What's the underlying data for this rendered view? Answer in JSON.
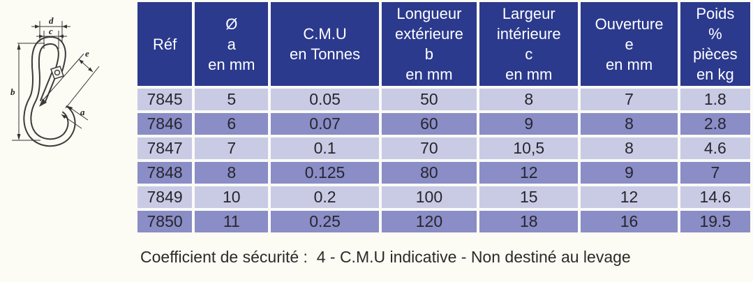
{
  "page": {
    "background": "#fcfbf4"
  },
  "diagram": {
    "description": "technical line drawing of a spring snap hook (mousqueton)",
    "labels": {
      "d": "d",
      "c": "c",
      "b": "b",
      "e": "e",
      "a": "a"
    }
  },
  "table": {
    "colors": {
      "header_bg": "#2b3a8d",
      "header_text": "#ffffff",
      "row_light": "#c9cbe4",
      "row_dark": "#8a8dc6",
      "cell_text": "#26262e",
      "gap": "#fafaf7"
    },
    "columns": [
      {
        "label": "Réf"
      },
      {
        "label": "Ø\na\nen mm"
      },
      {
        "label": "C.M.U\nen Tonnes"
      },
      {
        "label": "Longueur\nextérieure\nb\nen mm"
      },
      {
        "label": "Largeur\nintérieure\nc\nen mm"
      },
      {
        "label": "Ouverture\ne\nen mm"
      },
      {
        "label": "Poids\n%\npièces\nen kg"
      }
    ],
    "rows": [
      [
        "7845",
        "5",
        "0.05",
        "50",
        "8",
        "7",
        "1.8"
      ],
      [
        "7846",
        "6",
        "0.07",
        "60",
        "9",
        "8",
        "2.8"
      ],
      [
        "7847",
        "7",
        "0.1",
        "70",
        "10,5",
        "8",
        "4.6"
      ],
      [
        "7848",
        "8",
        "0.125",
        "80",
        "12",
        "9",
        "7"
      ],
      [
        "7849",
        "10",
        "0.2",
        "100",
        "15",
        "12",
        "14.6"
      ],
      [
        "7850",
        "11",
        "0.25",
        "120",
        "18",
        "16",
        "19.5"
      ]
    ]
  },
  "footer": {
    "note": "Coefficient de sécurité :  4 - C.M.U indicative - Non destiné au levage"
  }
}
